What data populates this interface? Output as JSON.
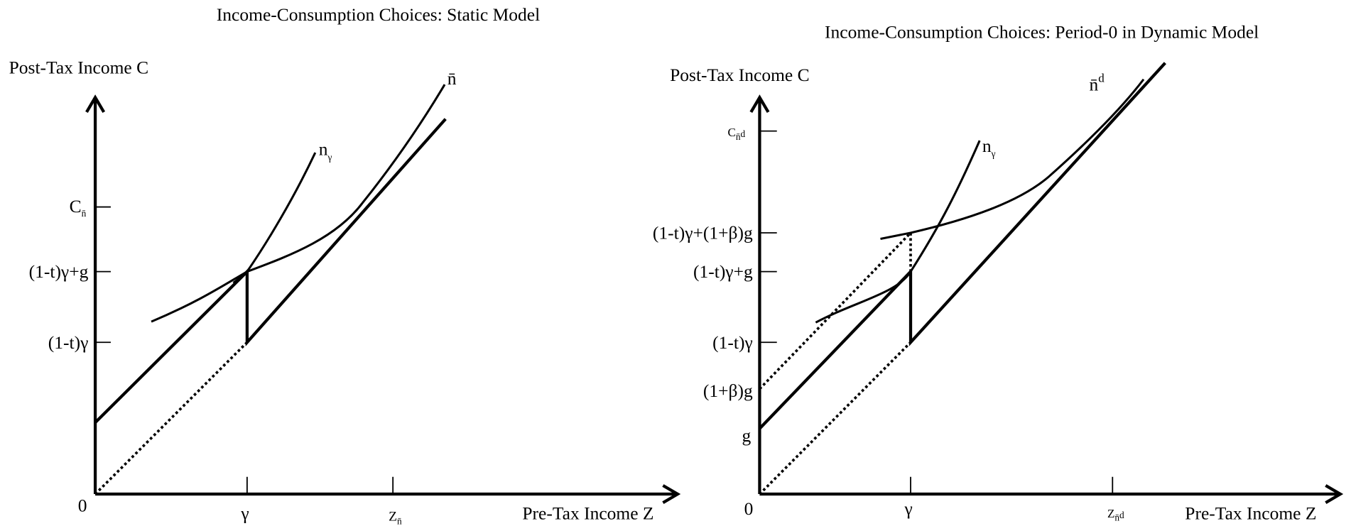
{
  "panels": [
    {
      "title": "Income-Consumption Choices: Static Model",
      "y_axis_label": "Post-Tax Income C",
      "x_axis_label": "Pre-Tax Income Z",
      "origin_label": "0",
      "y_ticks": [
        {
          "main": "C",
          "sub": "n̄"
        },
        {
          "main": "(1-t)γ+g"
        },
        {
          "main": "(1-t)γ"
        }
      ],
      "x_ticks": [
        {
          "main": "γ"
        },
        {
          "main": "Z",
          "sub": "n̄"
        }
      ],
      "curve_labels": [
        {
          "main": "n",
          "sub": "γ"
        },
        {
          "main": "n̄"
        }
      ]
    },
    {
      "title": "Income-Consumption Choices: Period-0 in Dynamic Model",
      "y_axis_label": "Post-Tax Income C",
      "x_axis_label": "Pre-Tax Income Z",
      "origin_label": "0",
      "y_ticks": [
        {
          "main": "C",
          "sub": "n̄",
          "sup": "d"
        },
        {
          "main": "(1-t)γ+(1+β)g"
        },
        {
          "main": "(1-t)γ+g"
        },
        {
          "main": "(1-t)γ"
        },
        {
          "main": "(1+β)g"
        },
        {
          "main": "g"
        }
      ],
      "x_ticks": [
        {
          "main": "γ"
        },
        {
          "main": "Z",
          "sub": "n̄",
          "sup": "d"
        }
      ],
      "curve_labels": [
        {
          "main": "n",
          "sub": "γ"
        },
        {
          "main": "n̄",
          "sup": "d"
        }
      ]
    }
  ]
}
